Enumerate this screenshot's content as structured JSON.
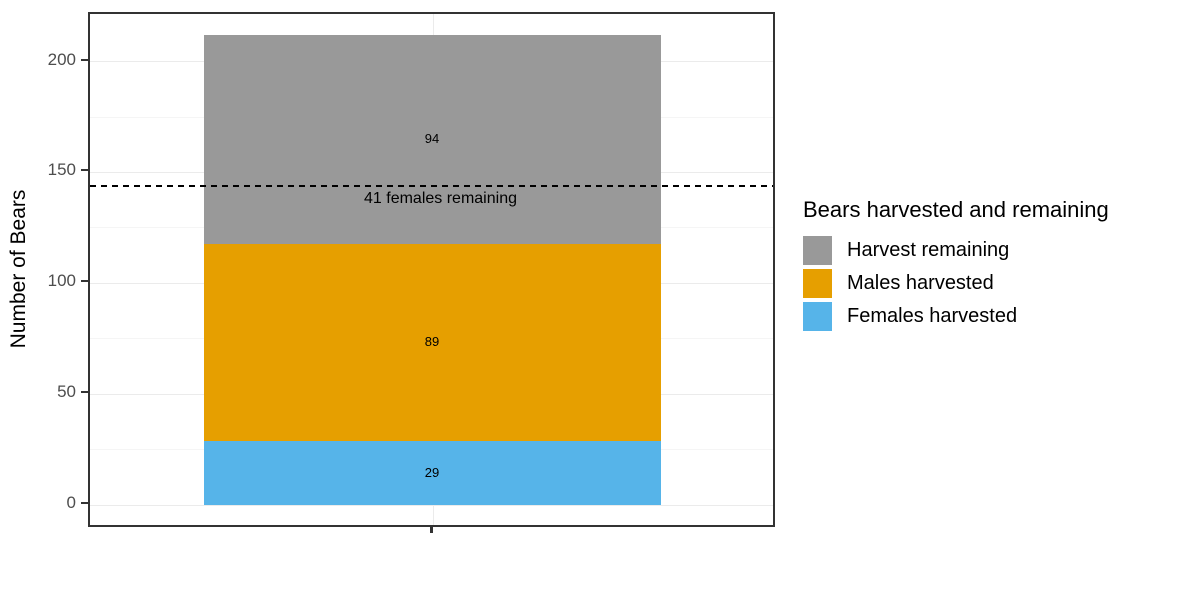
{
  "chart_data": {
    "type": "bar",
    "title": "",
    "xlabel": "",
    "ylabel": "Number of Bears",
    "ylim": [
      -10.6,
      221.4
    ],
    "yticks": [
      0,
      50,
      100,
      150,
      200
    ],
    "yticks_minor": [
      25,
      75,
      125,
      175
    ],
    "categories": [
      ""
    ],
    "stack_total": 212,
    "series": [
      {
        "name": "Females harvested",
        "value": 29,
        "color": "#56B4E9"
      },
      {
        "name": "Males harvested",
        "value": 89,
        "color": "#E69F00"
      },
      {
        "name": "Harvest remaining",
        "value": 94,
        "color": "#999999"
      }
    ],
    "reference_line": {
      "y": 144,
      "label": "41 females remaining",
      "style": "dashed",
      "color": "#000000"
    },
    "legend": {
      "position": "right",
      "title": "Bears harvested and remaining",
      "entries": [
        {
          "label": "Harvest remaining",
          "color": "#999999"
        },
        {
          "label": "Males harvested",
          "color": "#E69F00"
        },
        {
          "label": "Females harvested",
          "color": "#56B4E9"
        }
      ]
    },
    "grid": {
      "major_color": "#ebebeb",
      "minor_color": "#f5f5f5"
    },
    "colors": {
      "panel_border": "#333333",
      "tick_label": "#4d4d4d",
      "axis_title": "#000000",
      "background": "#ffffff"
    }
  }
}
